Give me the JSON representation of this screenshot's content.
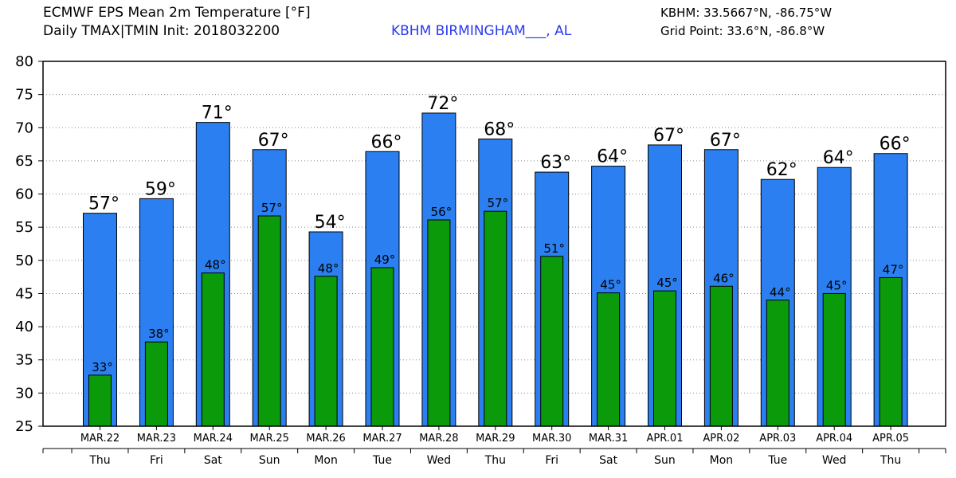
{
  "header": {
    "title_line1": "ECMWF EPS Mean 2m Temperature [°F]",
    "title_line2": "Daily TMAX|TMIN Init: 2018032200",
    "station": "KBHM BIRMINGHAM___, AL",
    "coord_line1": "KBHM: 33.5667°N, -86.75°W",
    "coord_line2": "Grid Point: 33.6°N, -86.8°W"
  },
  "colors": {
    "tmax": "#2b7ff0",
    "tmin": "#0a9a0a",
    "station_text": "#2a3af0"
  },
  "chart_data": {
    "type": "bar",
    "categories": [
      "MAR.22",
      "MAR.23",
      "MAR.24",
      "MAR.25",
      "MAR.26",
      "MAR.27",
      "MAR.28",
      "MAR.29",
      "MAR.30",
      "MAR.31",
      "APR.01",
      "APR.02",
      "APR.03",
      "APR.04",
      "APR.05"
    ],
    "days": [
      "Thu",
      "Fri",
      "Sat",
      "Sun",
      "Mon",
      "Tue",
      "Wed",
      "Thu",
      "Fri",
      "Sat",
      "Sun",
      "Mon",
      "Tue",
      "Wed",
      "Thu"
    ],
    "series": [
      {
        "values": [
          57.1,
          59.3,
          70.8,
          66.7,
          54.3,
          66.4,
          72.2,
          68.3,
          63.3,
          64.2,
          67.4,
          66.7,
          62.2,
          64.0,
          66.1
        ],
        "labels": [
          "57°",
          "59°",
          "71°",
          "67°",
          "54°",
          "66°",
          "72°",
          "68°",
          "63°",
          "64°",
          "67°",
          "67°",
          "62°",
          "64°",
          "66°"
        ]
      },
      {
        "values": [
          32.7,
          37.7,
          48.1,
          56.7,
          47.6,
          48.9,
          56.1,
          57.4,
          50.6,
          45.1,
          45.4,
          46.1,
          44.0,
          45.0,
          47.4
        ],
        "labels": [
          "33°",
          "38°",
          "48°",
          "57°",
          "48°",
          "49°",
          "56°",
          "57°",
          "51°",
          "45°",
          "45°",
          "46°",
          "44°",
          "45°",
          "47°"
        ]
      }
    ],
    "ylim": [
      25,
      80
    ],
    "yticks": [
      25,
      30,
      35,
      40,
      45,
      50,
      55,
      60,
      65,
      70,
      75,
      80
    ],
    "grid": true
  }
}
